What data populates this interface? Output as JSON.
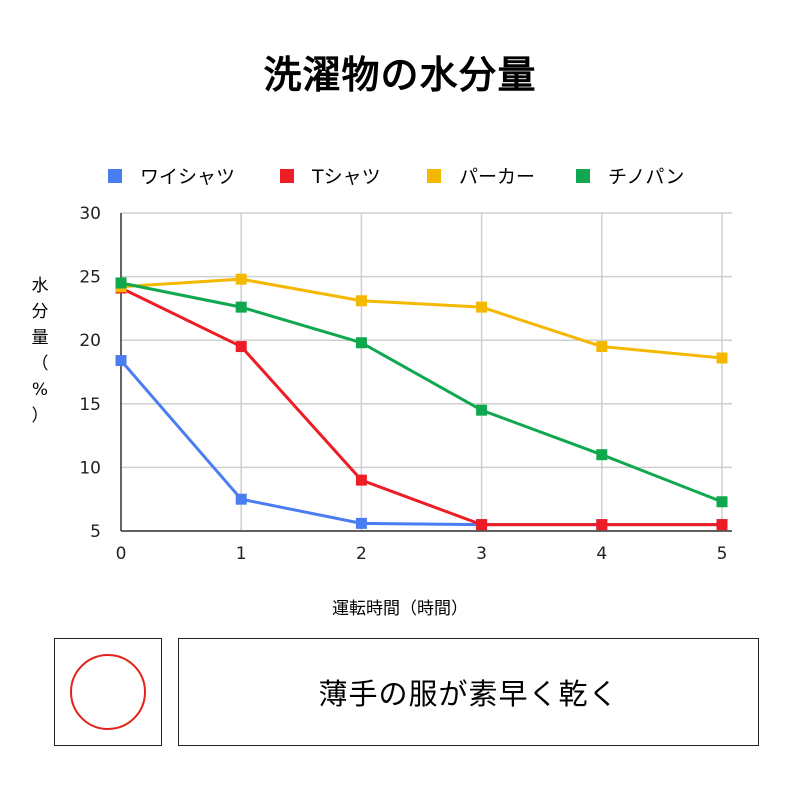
{
  "title": "洗濯物の水分量",
  "chart_data": {
    "type": "line",
    "title": "洗濯物の水分量",
    "xlabel": "運転時間（時間）",
    "ylabel_chars": [
      "水",
      "分",
      "量",
      "（",
      "%",
      "）"
    ],
    "x": [
      0,
      1,
      2,
      3,
      4,
      5
    ],
    "xlim": [
      0,
      5
    ],
    "ylim": [
      5,
      30
    ],
    "yticks": [
      5,
      10,
      15,
      20,
      25,
      30
    ],
    "grid": true,
    "legend_position": "top",
    "series": [
      {
        "name": "ワイシャツ",
        "color": "#4a7df2",
        "values": [
          18.4,
          7.5,
          5.6,
          5.5,
          5.5,
          5.5
        ]
      },
      {
        "name": "Tシャツ",
        "color": "#ee1c25",
        "values": [
          24.1,
          19.5,
          9.0,
          5.5,
          5.5,
          5.5
        ]
      },
      {
        "name": "パーカー",
        "color": "#f5b800",
        "values": [
          24.2,
          24.8,
          23.1,
          22.6,
          19.5,
          18.6
        ]
      },
      {
        "name": "チノパン",
        "color": "#10a84f",
        "values": [
          24.5,
          22.6,
          19.8,
          14.5,
          11.0,
          7.3
        ]
      }
    ]
  },
  "note": {
    "mark_symbol": "circle",
    "mark_color": "#e2231a",
    "text": "薄手の服が素早く乾く"
  }
}
